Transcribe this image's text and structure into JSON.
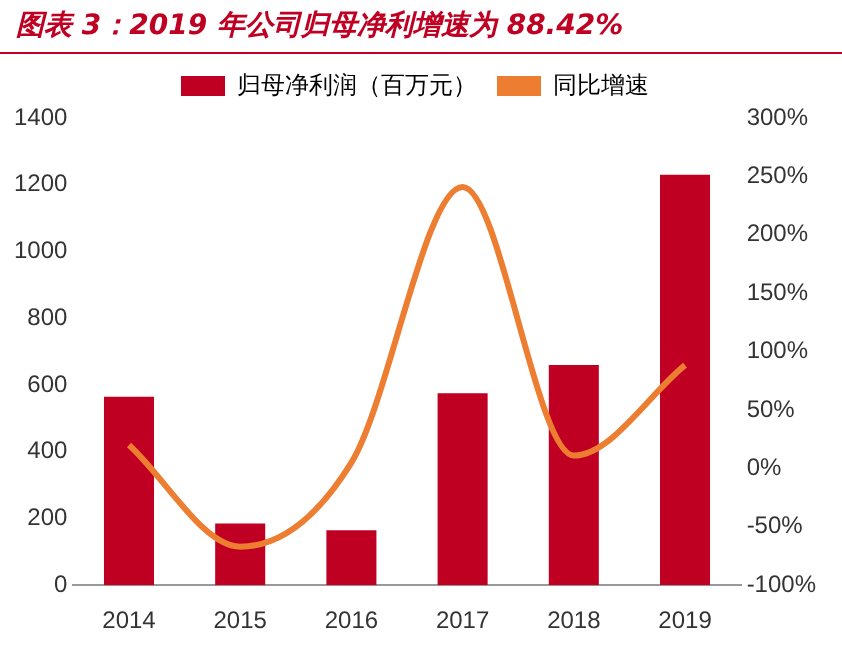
{
  "chart_data": {
    "type": "bar",
    "title": "图表 3：2019 年公司归母净利增速为 88.42%",
    "categories": [
      "2014",
      "2015",
      "2016",
      "2017",
      "2018",
      "2019"
    ],
    "series": [
      {
        "name": "归母净利润（百万元）",
        "color": "#c00023",
        "values": [
          565,
          185,
          165,
          575,
          660,
          1230
        ]
      },
      {
        "name": "同比增速",
        "type": "line",
        "axis": "y2",
        "color": "#ed7d31",
        "values": [
          20,
          -67,
          5,
          241,
          11,
          88.42
        ]
      }
    ],
    "ylim": [
      0,
      1400
    ],
    "yticks": [
      0,
      200,
      400,
      600,
      800,
      1000,
      1200,
      1400
    ],
    "y2lim": [
      -100,
      300
    ],
    "y2ticks": [
      {
        "value": -100,
        "label": "-100%"
      },
      {
        "value": -50,
        "label": "-50%"
      },
      {
        "value": 0,
        "label": "0%"
      },
      {
        "value": 50,
        "label": "50%"
      },
      {
        "value": 100,
        "label": "100%"
      },
      {
        "value": 150,
        "label": "150%"
      },
      {
        "value": 200,
        "label": "200%"
      },
      {
        "value": 250,
        "label": "250%"
      },
      {
        "value": 300,
        "label": "300%"
      }
    ],
    "legend": "top",
    "grid": false,
    "marker": "none"
  }
}
